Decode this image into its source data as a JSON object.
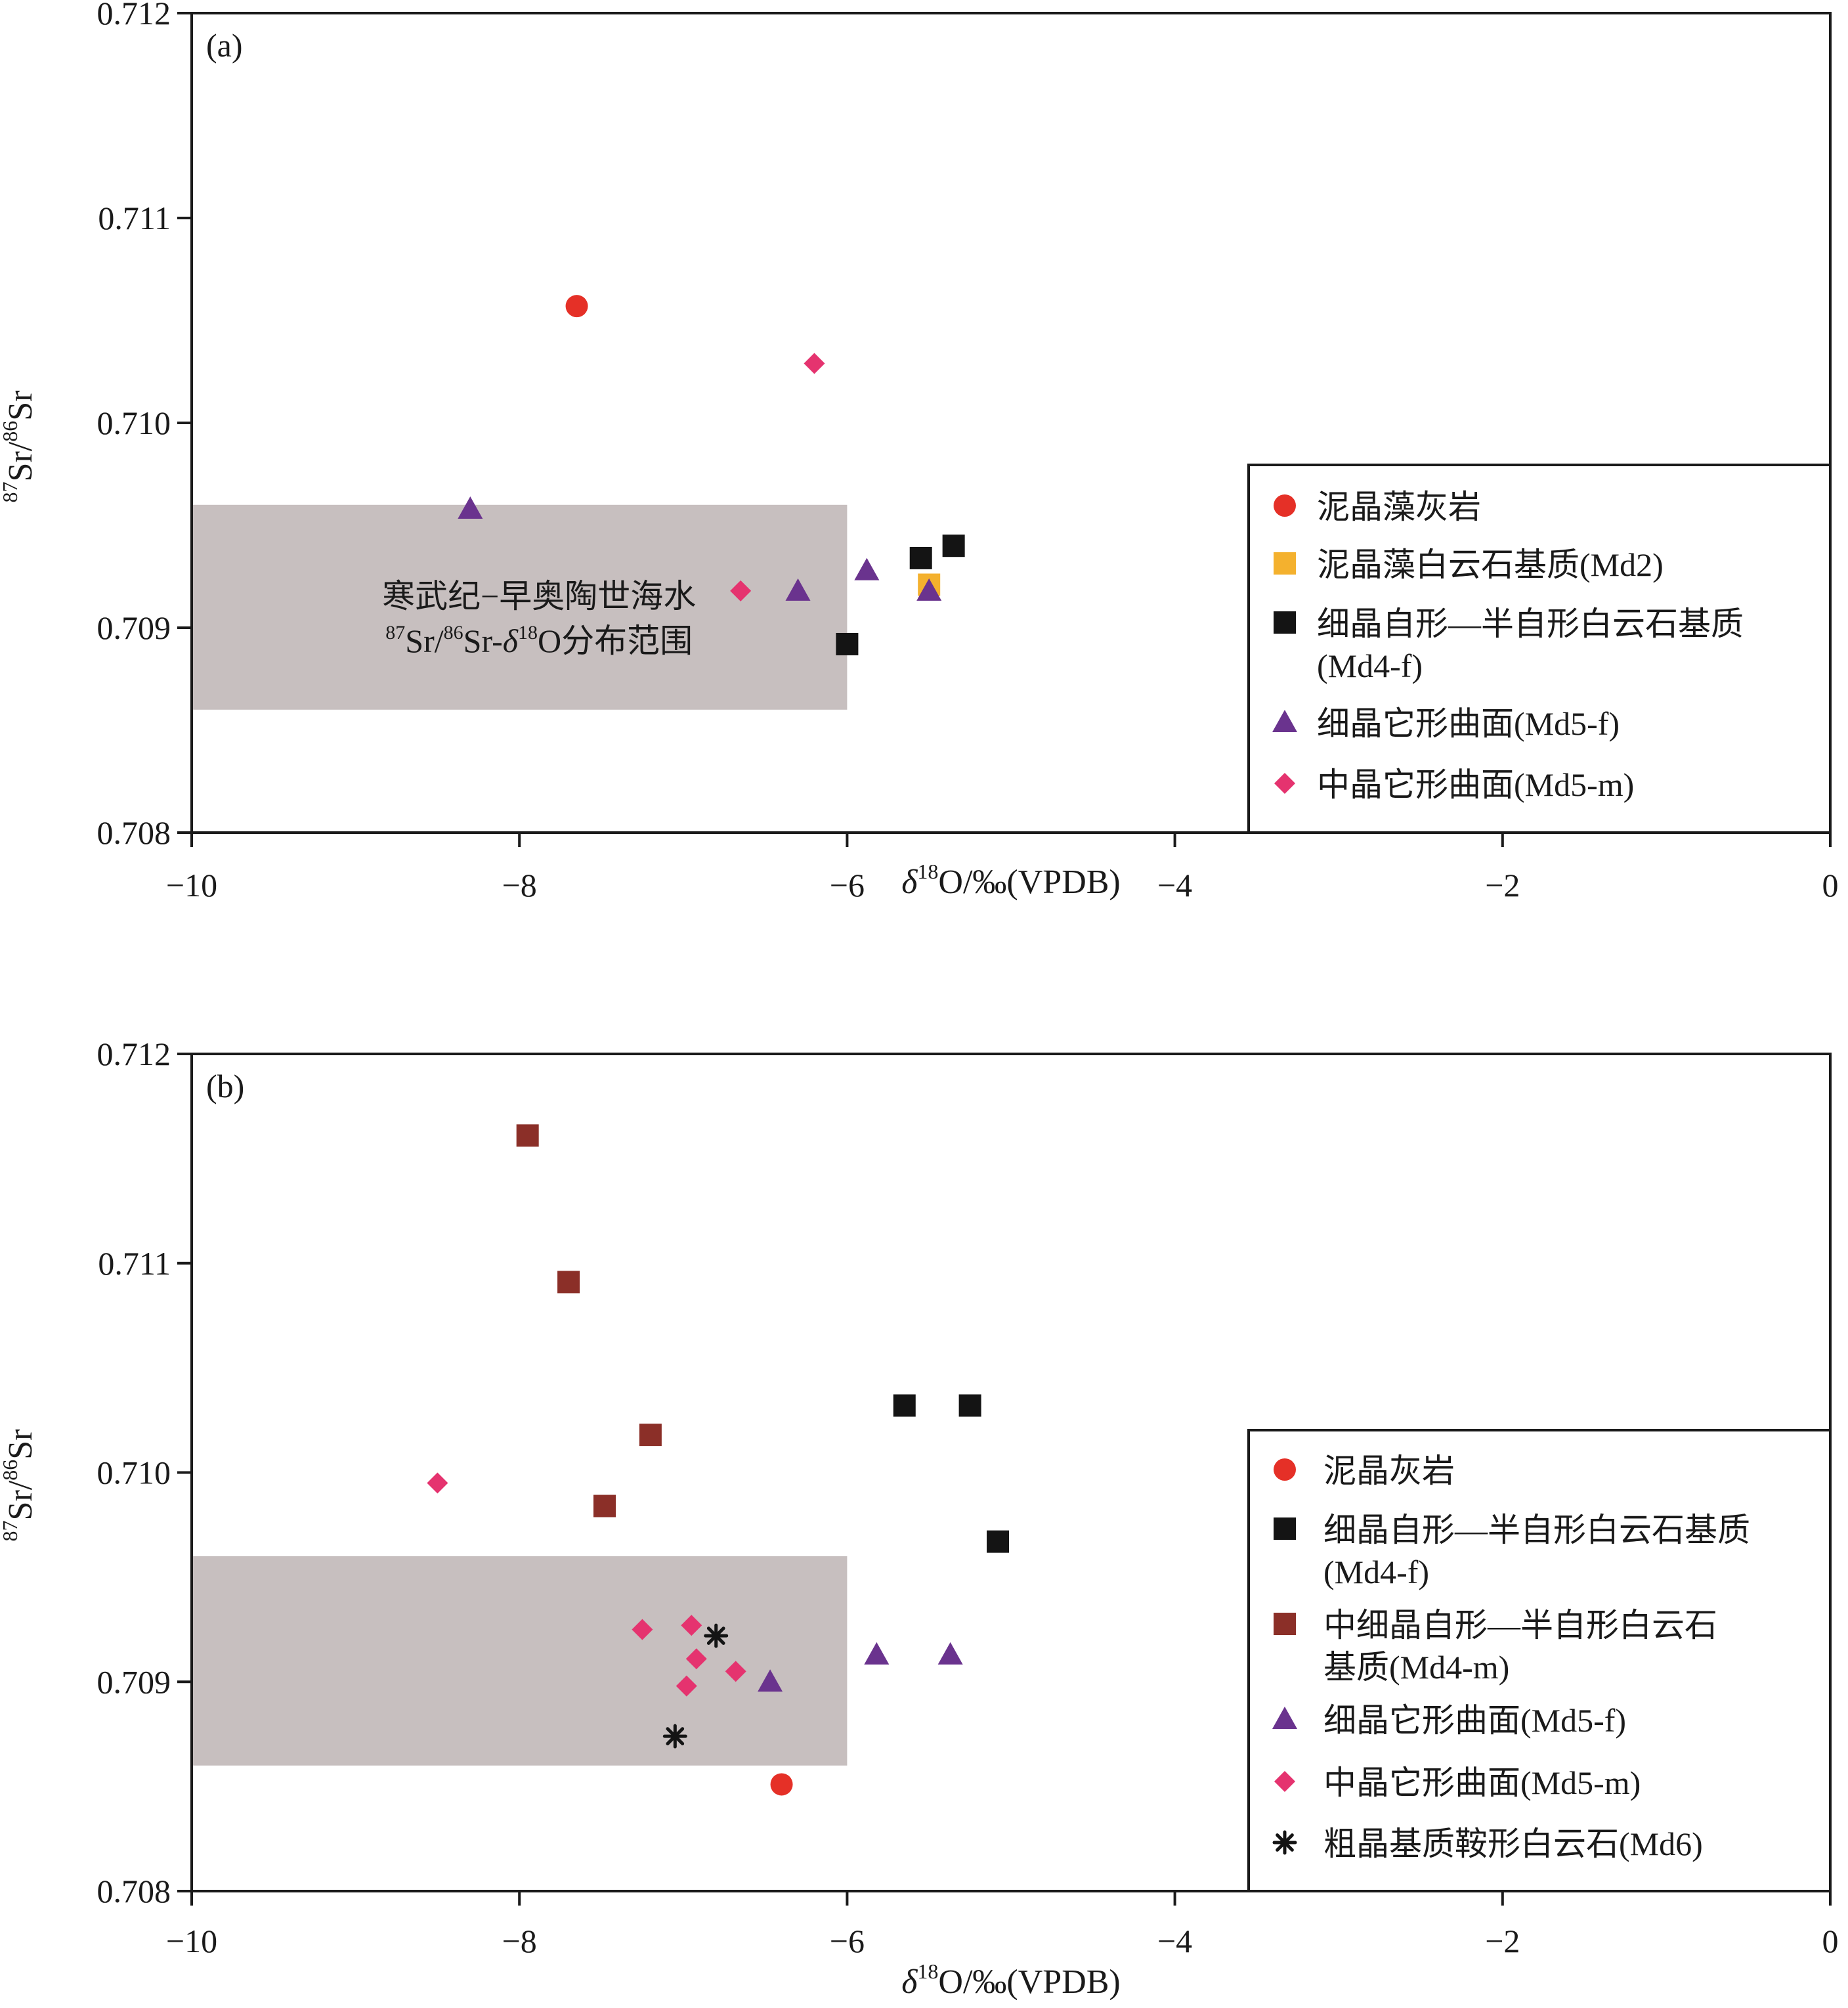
{
  "colors": {
    "axis": "#1a1a1a",
    "shade": "#c7bfbf",
    "red": "#e53027",
    "orange": "#f4b12e",
    "black": "#141414",
    "purple": "#6a338e",
    "pink": "#e5336f",
    "brown": "#8b2f28"
  },
  "chart_data": [
    {
      "type": "scatter",
      "panel_label": "(a)",
      "xlabel": "δ18O/‰(VPDB)",
      "xlabel_parts": {
        "delta": "δ",
        "sup": "18",
        "rest": "O/‰(VPDB)"
      },
      "ylabel_parts": {
        "sup1": "87",
        "sr1": "Sr/",
        "sup2": "86",
        "sr2": "Sr"
      },
      "xlim": [
        -10,
        0
      ],
      "ylim": [
        0.708,
        0.712
      ],
      "x_ticks": [
        -10,
        -8,
        -6,
        -4,
        -2,
        0
      ],
      "x_tick_labels": [
        "−10",
        "−8",
        "−6",
        "−4",
        "−2",
        "0"
      ],
      "y_ticks": [
        0.708,
        0.709,
        0.71,
        0.711,
        0.712
      ],
      "y_tick_labels": [
        "0.708",
        "0.709",
        "0.710",
        "0.711",
        "0.712"
      ],
      "legend_position": "right",
      "shaded_region": {
        "x": [
          -10,
          -6
        ],
        "y": [
          0.7086,
          0.7096
        ],
        "label_line1": "寒武纪−早奥陶世海水",
        "label_line2_parts": {
          "sup1": "87",
          "t1": "Sr/",
          "sup2": "86",
          "t2": "Sr-",
          "delta": "δ",
          "sup3": "18",
          "t3": "O分布范围"
        }
      },
      "series": [
        {
          "name": "泥晶藻灰岩",
          "marker": "circle",
          "color": "#e53027",
          "points": [
            [
              -7.65,
              0.71057
            ]
          ]
        },
        {
          "name": "泥晶藻白云石基质(Md2)",
          "marker": "square",
          "color": "#f4b12e",
          "points": [
            [
              -5.5,
              0.70921
            ]
          ]
        },
        {
          "name": "细晶自形—半自形白云石基质",
          "name_line2": "(Md4-f)",
          "marker": "square",
          "color": "#141414",
          "points": [
            [
              -5.55,
              0.70934
            ],
            [
              -5.35,
              0.7094
            ],
            [
              -6.0,
              0.70892
            ]
          ]
        },
        {
          "name": "细晶它形曲面(Md5-f)",
          "marker": "triangle",
          "color": "#6a338e",
          "points": [
            [
              -8.3,
              0.70958
            ],
            [
              -6.3,
              0.70918
            ],
            [
              -5.88,
              0.70928
            ],
            [
              -5.5,
              0.70918
            ]
          ]
        },
        {
          "name": "中晶它形曲面(Md5-m)",
          "marker": "diamond",
          "color": "#e5336f",
          "points": [
            [
              -6.2,
              0.71029
            ],
            [
              -6.65,
              0.70918
            ]
          ]
        }
      ]
    },
    {
      "type": "scatter",
      "panel_label": "(b)",
      "xlabel": "δ18O/‰(VPDB)",
      "xlabel_parts": {
        "delta": "δ",
        "sup": "18",
        "rest": "O/‰(VPDB)"
      },
      "ylabel_parts": {
        "sup1": "87",
        "sr1": "Sr/",
        "sup2": "86",
        "sr2": "Sr"
      },
      "xlim": [
        -10,
        0
      ],
      "ylim": [
        0.708,
        0.712
      ],
      "x_ticks": [
        -10,
        -8,
        -6,
        -4,
        -2,
        0
      ],
      "x_tick_labels": [
        "−10",
        "−8",
        "−6",
        "−4",
        "−2",
        "0"
      ],
      "y_ticks": [
        0.708,
        0.709,
        0.71,
        0.711,
        0.712
      ],
      "y_tick_labels": [
        "0.708",
        "0.709",
        "0.710",
        "0.711",
        "0.712"
      ],
      "legend_position": "right",
      "shaded_region": {
        "x": [
          -10,
          -6
        ],
        "y": [
          0.7086,
          0.7096
        ]
      },
      "series": [
        {
          "name": "泥晶灰岩",
          "marker": "circle",
          "color": "#e53027",
          "points": [
            [
              -6.4,
              0.70851
            ]
          ]
        },
        {
          "name": "细晶自形—半自形白云石基质",
          "name_line2": "(Md4-f)",
          "marker": "square",
          "color": "#141414",
          "points": [
            [
              -5.65,
              0.71032
            ],
            [
              -5.25,
              0.71032
            ],
            [
              -5.08,
              0.70967
            ]
          ]
        },
        {
          "name": "中细晶自形—半自形白云石",
          "name_line2": "基质(Md4-m)",
          "marker": "square",
          "color": "#8b2f28",
          "points": [
            [
              -7.95,
              0.71161
            ],
            [
              -7.7,
              0.71091
            ],
            [
              -7.2,
              0.71018
            ],
            [
              -7.48,
              0.70984
            ]
          ]
        },
        {
          "name": "细晶它形曲面(Md5-f)",
          "marker": "triangle",
          "color": "#6a338e",
          "points": [
            [
              -5.82,
              0.70913
            ],
            [
              -5.37,
              0.70913
            ],
            [
              -6.47,
              0.709
            ]
          ]
        },
        {
          "name": "中晶它形曲面(Md5-m)",
          "marker": "diamond",
          "color": "#e5336f",
          "points": [
            [
              -8.5,
              0.70995
            ],
            [
              -7.25,
              0.70925
            ],
            [
              -6.95,
              0.70927
            ],
            [
              -6.92,
              0.70911
            ],
            [
              -6.68,
              0.70905
            ],
            [
              -6.98,
              0.70898
            ]
          ]
        },
        {
          "name": "粗晶基质鞍形白云石(Md6)",
          "marker": "asterisk",
          "color": "#141414",
          "points": [
            [
              -6.8,
              0.70922
            ],
            [
              -7.05,
              0.70874
            ]
          ]
        }
      ]
    }
  ]
}
